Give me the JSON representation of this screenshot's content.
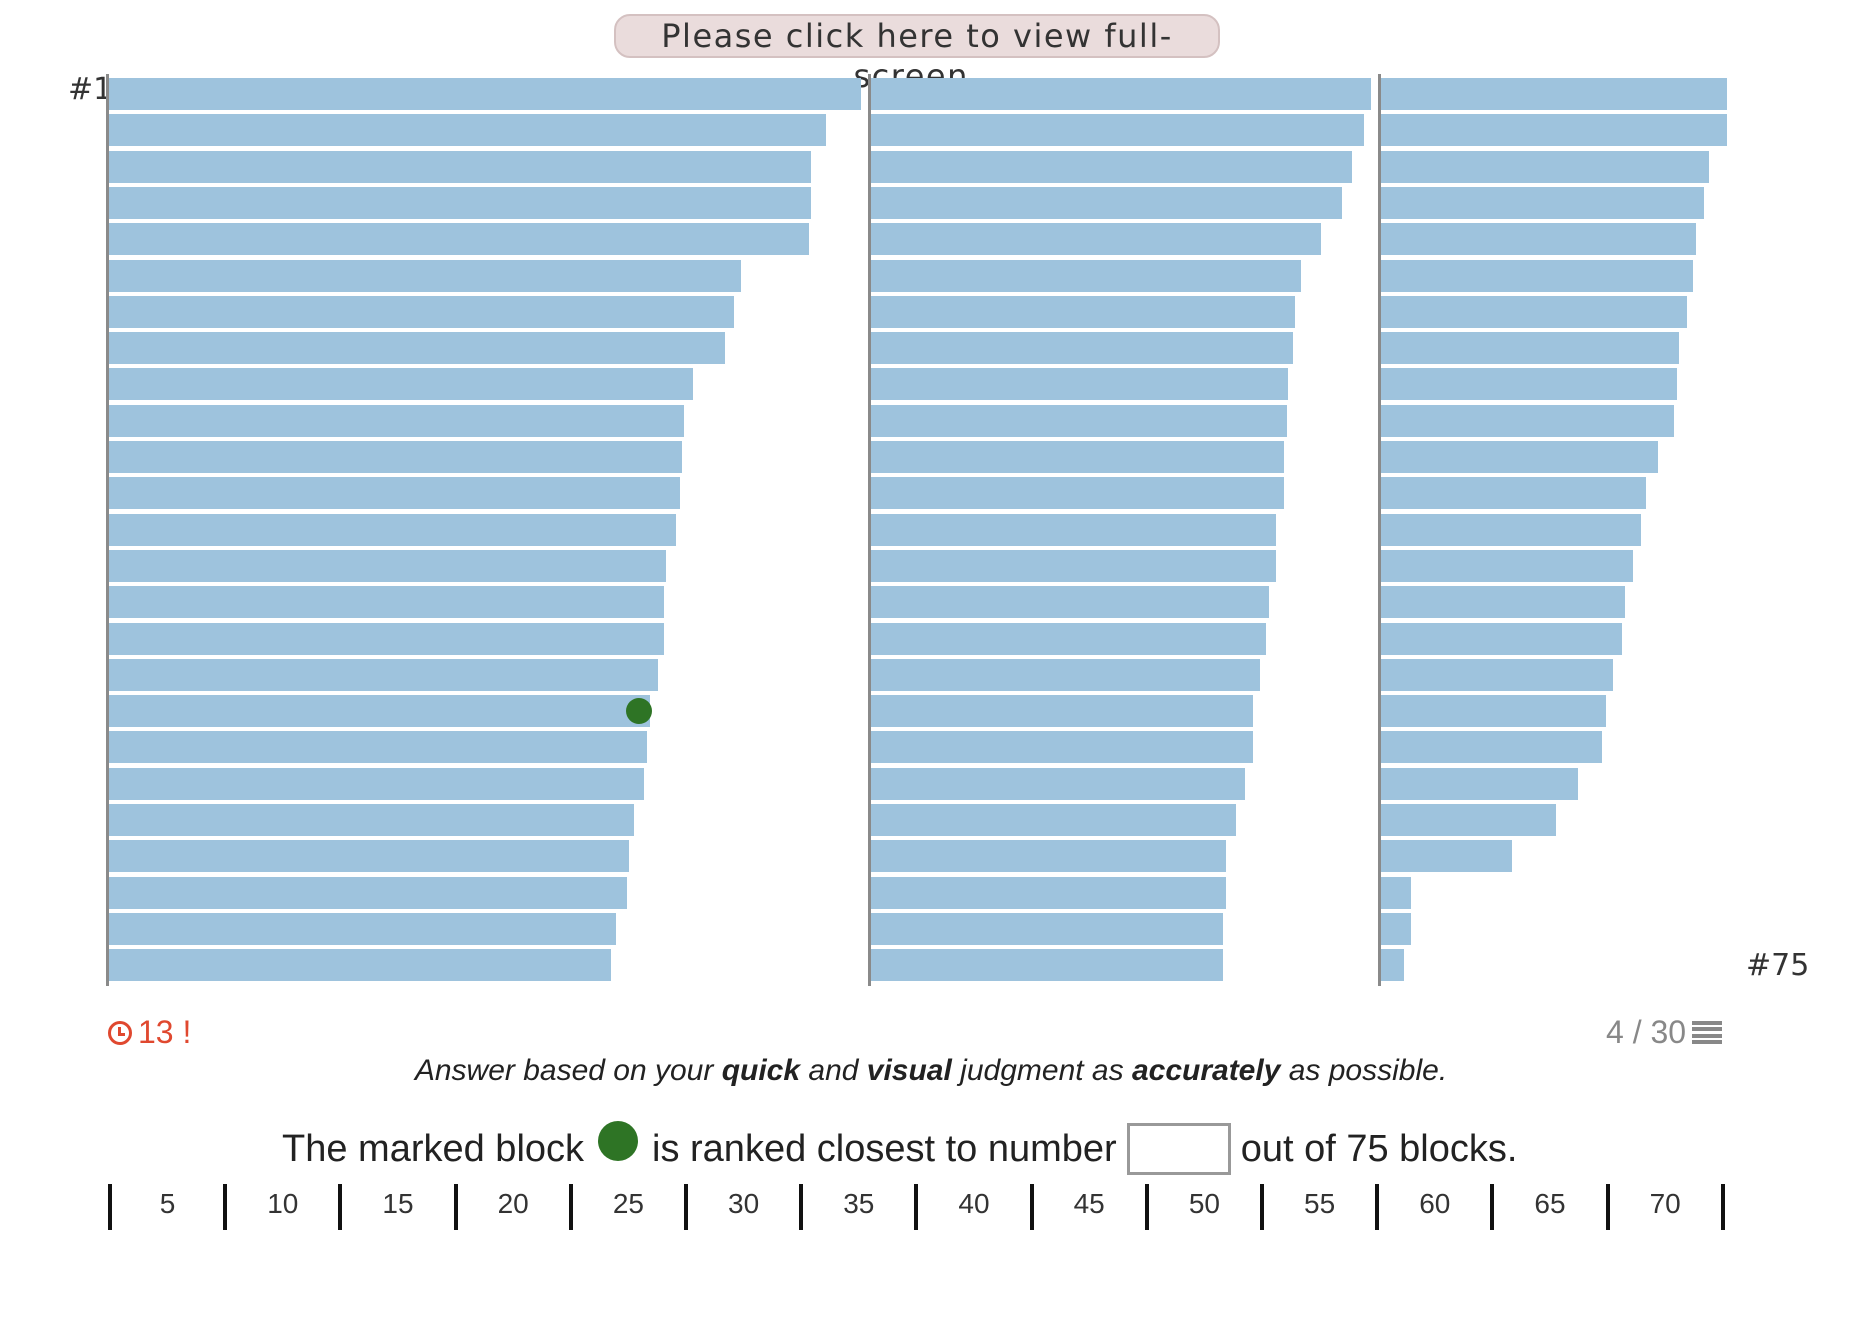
{
  "fullscreen_button": "Please click here to view full-screen.",
  "rank_first": "#1",
  "rank_last": "#75",
  "bar_color": "#9ec3dd",
  "marker_color": "#2e7425",
  "chart_data": {
    "type": "bar",
    "orientation": "horizontal",
    "total_blocks": 75,
    "columns": 3,
    "values": [
      1.0,
      0.954,
      0.934,
      0.934,
      0.931,
      0.84,
      0.831,
      0.819,
      0.776,
      0.764,
      0.762,
      0.759,
      0.754,
      0.741,
      0.738,
      0.738,
      0.73,
      0.719,
      0.715,
      0.712,
      0.698,
      0.692,
      0.689,
      0.674,
      0.668,
      0.664,
      0.655,
      0.639,
      0.626,
      0.597,
      0.571,
      0.563,
      0.56,
      0.554,
      0.552,
      0.549,
      0.549,
      0.538,
      0.538,
      0.528,
      0.525,
      0.517,
      0.507,
      0.507,
      0.497,
      0.485,
      0.472,
      0.472,
      0.467,
      0.467,
      0.46,
      0.46,
      0.436,
      0.43,
      0.419,
      0.415,
      0.407,
      0.396,
      0.393,
      0.39,
      0.368,
      0.352,
      0.346,
      0.335,
      0.324,
      0.321,
      0.308,
      0.299,
      0.294,
      0.262,
      0.233,
      0.174,
      0.04,
      0.04,
      0.031
    ],
    "marked_index": 17
  },
  "timer": {
    "icon": "clock-icon",
    "value": "13 !",
    "color": "#e0482f"
  },
  "progress": {
    "text": "4 / 30",
    "icon": "list-icon"
  },
  "instructions": {
    "p1": "Answer based on your ",
    "b1": "quick",
    "p2": " and ",
    "b2": "visual",
    "p3": " judgment as ",
    "b3": "accurately",
    "p4": " as possible."
  },
  "question": {
    "before": "The marked block",
    "middle": "is ranked closest to number",
    "after": "out of 75 blocks.",
    "answer_value": ""
  },
  "scale": {
    "labels": [
      "5",
      "10",
      "15",
      "20",
      "25",
      "30",
      "35",
      "40",
      "45",
      "50",
      "55",
      "60",
      "65",
      "70"
    ]
  }
}
